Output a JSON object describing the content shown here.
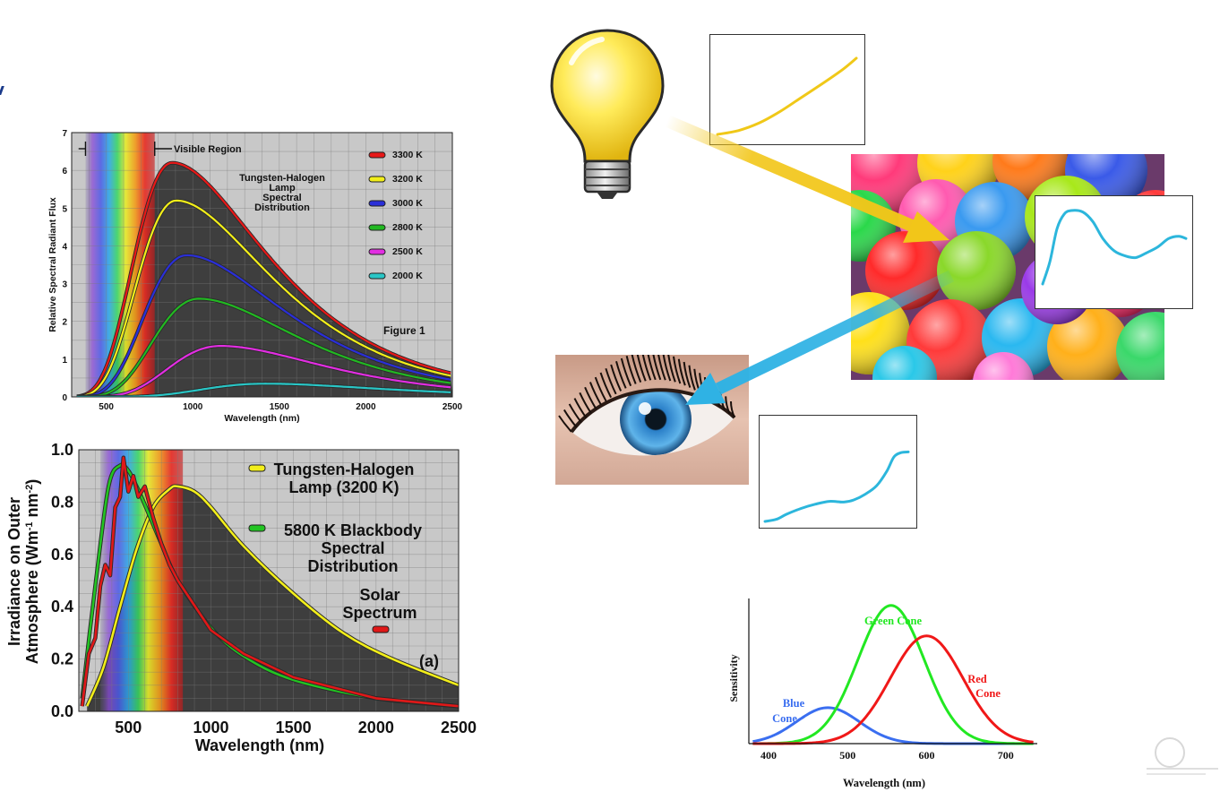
{
  "chart_data": [
    {
      "id": "tungsten",
      "type": "line",
      "title": "Tungsten-Halogen Lamp Spectral Distribution",
      "caption": "Figure 1",
      "region_label": "Visible Region",
      "xlabel": "Wavelength (nm)",
      "ylabel": "Relative Spectral Radiant Flux",
      "xlim": [
        300,
        2500
      ],
      "ylim": [
        0,
        7
      ],
      "xticks": [
        500,
        1000,
        1500,
        2000,
        2500
      ],
      "yticks": [
        0,
        1,
        2,
        3,
        4,
        5,
        6,
        7
      ],
      "grid": true,
      "legend_position": "top-right",
      "series": [
        {
          "name": "3300 K",
          "color": "#e81818",
          "peak_x": 880,
          "peak_y": 6.2,
          "end_y": 0.62
        },
        {
          "name": "3200 K",
          "color": "#f2ee1a",
          "peak_x": 905,
          "peak_y": 5.2,
          "end_y": 0.55
        },
        {
          "name": "3000 K",
          "color": "#2a2fd8",
          "peak_x": 965,
          "peak_y": 3.75,
          "end_y": 0.45
        },
        {
          "name": "2800 K",
          "color": "#22b822",
          "peak_x": 1035,
          "peak_y": 2.6,
          "end_y": 0.36
        },
        {
          "name": "2500 K",
          "color": "#e22ee2",
          "peak_x": 1160,
          "peak_y": 1.35,
          "end_y": 0.25
        },
        {
          "name": "2000 K",
          "color": "#29c6c6",
          "peak_x": 1420,
          "peak_y": 0.35,
          "end_y": 0.12
        }
      ]
    },
    {
      "id": "irradiance",
      "type": "line",
      "panel_label": "(a)",
      "xlabel": "Wavelength (nm)",
      "ylabel_line1": "Irradiance on Outer",
      "ylabel_line2": "Atmosphere (Wm",
      "ylabel_exp1": "-1",
      "ylabel_mid": " nm",
      "ylabel_exp2": "-2",
      "ylabel_end": ")",
      "xlim": [
        200,
        2500
      ],
      "ylim": [
        0,
        1.0
      ],
      "xticks": [
        500,
        1000,
        1500,
        2000,
        2500
      ],
      "yticks": [
        "0.0",
        "0.2",
        "0.4",
        "0.6",
        "0.8",
        "1.0"
      ],
      "grid": true,
      "legend": [
        {
          "line1": "Tungsten-Halogen",
          "line2": "Lamp (3200 K)",
          "color": "#f2ee1a"
        },
        {
          "line1": "5800 K Blackbody",
          "line2": "Spectral",
          "line3": "Distribution",
          "color": "#22c422"
        },
        {
          "line1": "Solar",
          "line2": "Spectrum",
          "color": "#e01818"
        }
      ],
      "series": [
        {
          "name": "Tungsten-Halogen Lamp (3200 K)",
          "color": "#f2ee1a",
          "x": [
            250,
            350,
            450,
            550,
            650,
            750,
            800,
            900,
            1000,
            1200,
            1500,
            1800,
            2100,
            2500
          ],
          "y": [
            0.02,
            0.17,
            0.4,
            0.62,
            0.78,
            0.85,
            0.86,
            0.84,
            0.78,
            0.63,
            0.45,
            0.3,
            0.2,
            0.1
          ]
        },
        {
          "name": "5800 K Blackbody Spectral Distribution",
          "color": "#22c422",
          "x": [
            220,
            300,
            380,
            450,
            500,
            550,
            600,
            700,
            800,
            1000,
            1200,
            1500,
            2000,
            2500
          ],
          "y": [
            0.05,
            0.48,
            0.86,
            0.94,
            0.92,
            0.86,
            0.79,
            0.64,
            0.5,
            0.32,
            0.21,
            0.12,
            0.05,
            0.02
          ]
        },
        {
          "name": "Solar Spectrum",
          "color": "#e01818",
          "x": [
            220,
            260,
            300,
            330,
            360,
            390,
            420,
            450,
            470,
            500,
            530,
            560,
            600,
            650,
            700,
            750,
            800,
            1000,
            1200,
            1500,
            2000,
            2500
          ],
          "y": [
            0.02,
            0.22,
            0.28,
            0.48,
            0.56,
            0.52,
            0.78,
            0.82,
            0.97,
            0.84,
            0.9,
            0.82,
            0.86,
            0.74,
            0.64,
            0.56,
            0.5,
            0.31,
            0.22,
            0.13,
            0.05,
            0.02
          ]
        }
      ]
    },
    {
      "id": "cones",
      "type": "line",
      "xlabel": "Wavelength (nm)",
      "ylabel": "Sensitivity",
      "xlim": [
        375,
        740
      ],
      "ylim": [
        0,
        1.05
      ],
      "xticks": [
        400,
        500,
        600,
        700
      ],
      "grid": false,
      "series": [
        {
          "name": "Blue Cone",
          "label_line1": "Blue",
          "label_line2": "Cone",
          "color": "#3a6ef0",
          "peak_x": 475,
          "peak_y": 0.26,
          "sigma": 40
        },
        {
          "name": "Green Cone",
          "label_line1": "Green Cone",
          "color": "#22e822",
          "peak_x": 555,
          "peak_y": 1.0,
          "sigma": 42
        },
        {
          "name": "Red Cone",
          "label_line1": "Red",
          "label_line2": "Cone",
          "color": "#f01818",
          "peak_x": 600,
          "peak_y": 0.78,
          "sigma": 46
        }
      ]
    },
    {
      "id": "lamp-spectrum-inset",
      "type": "line",
      "color": "#f0c818",
      "x": [
        0,
        0.15,
        0.3,
        0.45,
        0.6,
        0.75,
        0.9,
        1.0
      ],
      "y": [
        0,
        0.05,
        0.15,
        0.3,
        0.48,
        0.66,
        0.85,
        1.0
      ]
    },
    {
      "id": "balloon-reflectance-inset",
      "type": "line",
      "color": "#2cb6dc",
      "x": [
        0,
        0.05,
        0.1,
        0.15,
        0.2,
        0.28,
        0.35,
        0.42,
        0.5,
        0.58,
        0.65,
        0.72,
        0.8,
        0.88,
        0.95,
        1.0
      ],
      "y": [
        0.0,
        0.3,
        0.75,
        0.95,
        1.0,
        0.98,
        0.85,
        0.62,
        0.45,
        0.38,
        0.36,
        0.42,
        0.5,
        0.62,
        0.65,
        0.62
      ]
    },
    {
      "id": "eye-signal-inset",
      "type": "line",
      "color": "#2cb6dc",
      "x": [
        0,
        0.08,
        0.15,
        0.25,
        0.35,
        0.45,
        0.55,
        0.62,
        0.7,
        0.78,
        0.85,
        0.9,
        0.95,
        1.0
      ],
      "y": [
        0.0,
        0.03,
        0.1,
        0.18,
        0.24,
        0.28,
        0.27,
        0.3,
        0.38,
        0.5,
        0.7,
        0.9,
        0.96,
        0.97
      ]
    }
  ],
  "illustration": {
    "lamp": "light-bulb-icon",
    "balloons": "colorful-balloons-image",
    "eye": "blue-eye-image",
    "arrow_colors": [
      "#f2c619",
      "#2fb2e4"
    ]
  }
}
